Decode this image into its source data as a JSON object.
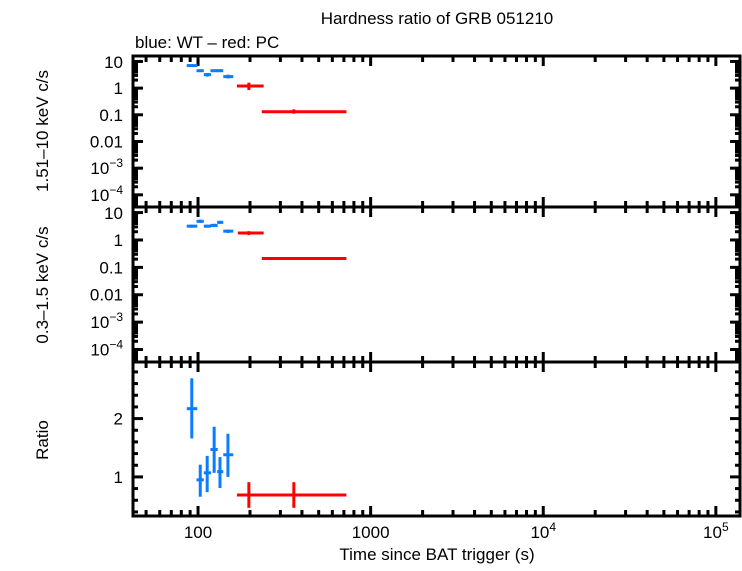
{
  "chart_data": {
    "type": "scatter",
    "title": "Hardness ratio of GRB 051210",
    "subtitle": "blue: WT – red: PC",
    "xlabel": "Time since BAT trigger (s)",
    "xscale": "log",
    "xlim": [
      42,
      138000
    ],
    "x_ticks": [
      {
        "value": 100,
        "label": "100"
      },
      {
        "value": 1000,
        "label": "1000"
      },
      {
        "value": 10000,
        "label": "10",
        "sup": "4"
      },
      {
        "value": 100000,
        "label": "10",
        "sup": "5"
      }
    ],
    "colors": {
      "WT": "#0a7cff",
      "PC": "#ff0000"
    },
    "panels": [
      {
        "ylabel": "1.51–10 keV c/s",
        "yscale": "log",
        "ylim": [
          3.5e-05,
          16
        ],
        "y_ticks": [
          {
            "value": 10,
            "label": "10"
          },
          {
            "value": 1,
            "label": "1"
          },
          {
            "value": 0.1,
            "label": "0.1"
          },
          {
            "value": 0.01,
            "label": "0.01"
          },
          {
            "value": 0.001,
            "label": "10",
            "sup": "−3"
          },
          {
            "value": 0.0001,
            "label": "10",
            "sup": "−4"
          }
        ],
        "series": [
          {
            "mode": "WT",
            "points": [
              {
                "x": 92,
                "xlo": 86,
                "xhi": 99,
                "y": 7.0,
                "ylo": 6.2,
                "yhi": 7.8
              },
              {
                "x": 103,
                "xlo": 98,
                "xhi": 108,
                "y": 4.5,
                "ylo": 4.0,
                "yhi": 5.0
              },
              {
                "x": 113,
                "xlo": 108,
                "xhi": 119,
                "y": 3.2,
                "ylo": 2.7,
                "yhi": 3.7
              },
              {
                "x": 124,
                "xlo": 118,
                "xhi": 130,
                "y": 4.5,
                "ylo": 4.0,
                "yhi": 5.0
              },
              {
                "x": 134,
                "xlo": 129,
                "xhi": 140,
                "y": 4.5,
                "ylo": 4.0,
                "yhi": 5.1
              },
              {
                "x": 149,
                "xlo": 140,
                "xhi": 160,
                "y": 2.7,
                "ylo": 2.3,
                "yhi": 3.2
              }
            ]
          },
          {
            "mode": "PC",
            "points": [
              {
                "x": 197,
                "xlo": 168,
                "xhi": 240,
                "y": 1.2,
                "ylo": 0.85,
                "yhi": 1.6
              },
              {
                "x": 359,
                "xlo": 234,
                "xhi": 724,
                "y": 0.13,
                "ylo": 0.11,
                "yhi": 0.16
              }
            ]
          }
        ]
      },
      {
        "ylabel": "0.3–1.5 keV c/s",
        "yscale": "log",
        "ylim": [
          3.5e-05,
          16
        ],
        "y_ticks": [
          {
            "value": 10,
            "label": "10"
          },
          {
            "value": 1,
            "label": "1"
          },
          {
            "value": 0.1,
            "label": "0.1"
          },
          {
            "value": 0.01,
            "label": "0.01"
          },
          {
            "value": 0.001,
            "label": "10",
            "sup": "−3"
          },
          {
            "value": 0.0001,
            "label": "10",
            "sup": "−4"
          }
        ],
        "series": [
          {
            "mode": "WT",
            "points": [
              {
                "x": 92,
                "xlo": 86,
                "xhi": 99,
                "y": 3.2,
                "ylo": 2.8,
                "yhi": 3.6
              },
              {
                "x": 103,
                "xlo": 98,
                "xhi": 108,
                "y": 4.8,
                "ylo": 4.2,
                "yhi": 5.5
              },
              {
                "x": 113,
                "xlo": 108,
                "xhi": 119,
                "y": 3.2,
                "ylo": 2.8,
                "yhi": 3.6
              },
              {
                "x": 124,
                "xlo": 118,
                "xhi": 130,
                "y": 3.4,
                "ylo": 3.0,
                "yhi": 3.9
              },
              {
                "x": 134,
                "xlo": 129,
                "xhi": 140,
                "y": 4.4,
                "ylo": 3.9,
                "yhi": 5.0
              },
              {
                "x": 149,
                "xlo": 140,
                "xhi": 160,
                "y": 2.1,
                "ylo": 1.8,
                "yhi": 2.4
              }
            ]
          },
          {
            "mode": "PC",
            "points": [
              {
                "x": 197,
                "xlo": 170,
                "xhi": 240,
                "y": 1.8,
                "ylo": 1.5,
                "yhi": 2.1
              },
              {
                "x": 359,
                "xlo": 234,
                "xhi": 724,
                "y": 0.21,
                "ylo": 0.19,
                "yhi": 0.23
              }
            ]
          }
        ]
      },
      {
        "ylabel": "Ratio",
        "yscale": "linear",
        "ylim": [
          0.33,
          2.97
        ],
        "y_ticks": [
          {
            "value": 1,
            "label": "1"
          },
          {
            "value": 2,
            "label": "2"
          }
        ],
        "y_minor_step": 0.2,
        "series": [
          {
            "mode": "WT",
            "points": [
              {
                "x": 92,
                "xlo": 86,
                "xhi": 99,
                "y": 2.17,
                "ylo": 1.66,
                "yhi": 2.69
              },
              {
                "x": 103,
                "xlo": 98,
                "xhi": 108,
                "y": 0.95,
                "ylo": 0.66,
                "yhi": 1.21
              },
              {
                "x": 113,
                "xlo": 108,
                "xhi": 119,
                "y": 1.07,
                "ylo": 0.74,
                "yhi": 1.36
              },
              {
                "x": 124,
                "xlo": 118,
                "xhi": 130,
                "y": 1.47,
                "ylo": 1.07,
                "yhi": 1.86
              },
              {
                "x": 134,
                "xlo": 129,
                "xhi": 140,
                "y": 1.09,
                "ylo": 0.81,
                "yhi": 1.34
              },
              {
                "x": 149,
                "xlo": 140,
                "xhi": 160,
                "y": 1.38,
                "ylo": 1.0,
                "yhi": 1.74
              }
            ]
          },
          {
            "mode": "PC",
            "points": [
              {
                "x": 197,
                "xlo": 168,
                "xhi": 240,
                "y": 0.69,
                "ylo": 0.47,
                "yhi": 0.91
              },
              {
                "x": 359,
                "xlo": 234,
                "xhi": 724,
                "y": 0.69,
                "ylo": 0.47,
                "yhi": 0.91
              }
            ]
          }
        ]
      }
    ]
  }
}
